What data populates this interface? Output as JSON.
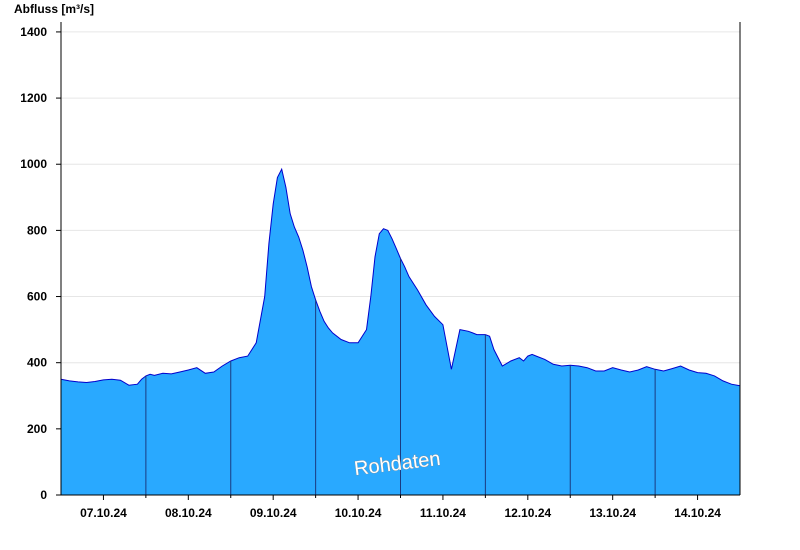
{
  "chart_data": {
    "type": "area",
    "title": "",
    "ylabel": "Abfluss [m³/s]",
    "xlabel": "",
    "ylim": [
      0,
      1430
    ],
    "yticks": [
      0,
      200,
      400,
      600,
      800,
      1000,
      1200,
      1400
    ],
    "xlim": [
      6.5,
      14.5
    ],
    "xticks": [
      {
        "x": 7.0,
        "label": "07.10.24"
      },
      {
        "x": 8.0,
        "label": "08.10.24"
      },
      {
        "x": 9.0,
        "label": "09.10.24"
      },
      {
        "x": 10.0,
        "label": "10.10.24"
      },
      {
        "x": 11.0,
        "label": "11.10.24"
      },
      {
        "x": 12.0,
        "label": "12.10.24"
      },
      {
        "x": 13.0,
        "label": "13.10.24"
      },
      {
        "x": 14.0,
        "label": "14.10.24"
      }
    ],
    "day_boundaries": [
      7.5,
      8.5,
      9.5,
      10.5,
      11.5,
      12.5,
      13.5
    ],
    "grid": true,
    "watermark": "Rohdaten",
    "colors": {
      "fill": "#29a9ff",
      "line": "#0000cc",
      "grid": "#e6e6e6",
      "axis": "#000000",
      "divider": "#1a3a80"
    },
    "series": [
      {
        "name": "",
        "x": [
          6.5,
          6.6,
          6.7,
          6.8,
          6.9,
          7.0,
          7.1,
          7.2,
          7.3,
          7.4,
          7.45,
          7.5,
          7.55,
          7.6,
          7.7,
          7.8,
          7.9,
          8.0,
          8.1,
          8.2,
          8.3,
          8.4,
          8.5,
          8.6,
          8.7,
          8.8,
          8.9,
          8.95,
          9.0,
          9.05,
          9.1,
          9.15,
          9.2,
          9.25,
          9.3,
          9.35,
          9.4,
          9.45,
          9.5,
          9.55,
          9.6,
          9.65,
          9.7,
          9.8,
          9.9,
          10.0,
          10.1,
          10.15,
          10.2,
          10.25,
          10.3,
          10.35,
          10.4,
          10.45,
          10.5,
          10.55,
          10.6,
          10.7,
          10.8,
          10.9,
          11.0,
          11.1,
          11.2,
          11.3,
          11.35,
          11.4,
          11.45,
          11.5,
          11.55,
          11.6,
          11.7,
          11.8,
          11.9,
          11.95,
          12.0,
          12.05,
          12.1,
          12.2,
          12.3,
          12.4,
          12.5,
          12.6,
          12.7,
          12.8,
          12.9,
          13.0,
          13.1,
          13.2,
          13.3,
          13.4,
          13.5,
          13.6,
          13.7,
          13.8,
          13.9,
          14.0,
          14.1,
          14.2,
          14.3,
          14.4,
          14.5
        ],
        "values": [
          350,
          345,
          342,
          340,
          343,
          348,
          350,
          347,
          332,
          335,
          350,
          360,
          365,
          362,
          368,
          366,
          372,
          378,
          385,
          368,
          372,
          390,
          405,
          415,
          420,
          460,
          600,
          760,
          880,
          960,
          985,
          930,
          850,
          810,
          780,
          740,
          690,
          630,
          590,
          555,
          525,
          505,
          490,
          470,
          460,
          460,
          500,
          600,
          720,
          790,
          805,
          800,
          775,
          745,
          715,
          690,
          660,
          620,
          575,
          540,
          515,
          380,
          500,
          495,
          490,
          485,
          485,
          485,
          480,
          440,
          390,
          405,
          415,
          405,
          420,
          425,
          420,
          410,
          395,
          390,
          392,
          390,
          385,
          375,
          375,
          385,
          378,
          372,
          378,
          388,
          380,
          375,
          382,
          390,
          378,
          370,
          368,
          360,
          345,
          335,
          330
        ]
      }
    ]
  }
}
